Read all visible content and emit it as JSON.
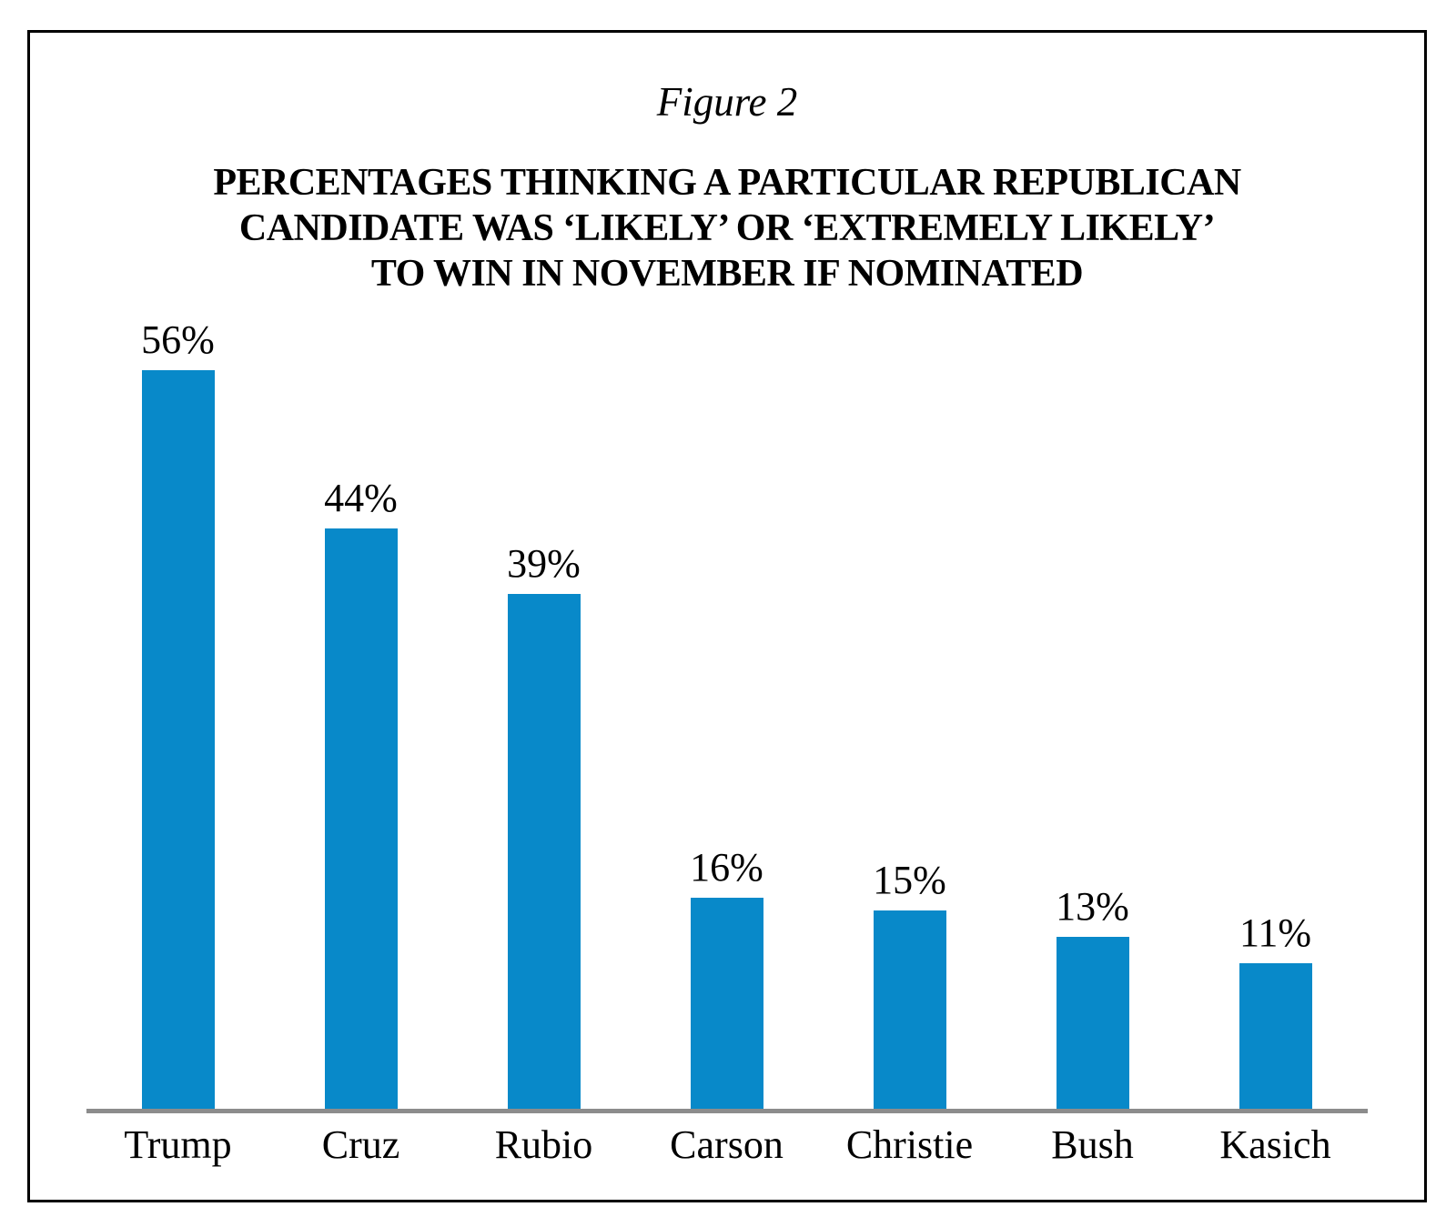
{
  "chart_data": {
    "type": "bar",
    "orientation": "vertical",
    "figure_label": "Figure 2",
    "title_lines": [
      "PERCENTAGES THINKING A PARTICULAR REPUBLICAN",
      "CANDIDATE WAS ‘LIKELY’ OR ‘EXTREMELY LIKELY’",
      "TO WIN IN NOVEMBER IF NOMINATED"
    ],
    "categories": [
      "Trump",
      "Cruz",
      "Rubio",
      "Carson",
      "Christie",
      "Bush",
      "Kasich"
    ],
    "values": [
      56,
      44,
      39,
      16,
      15,
      13,
      11
    ],
    "data_label_suffix": "%",
    "ylim": [
      0,
      60
    ],
    "grid": false,
    "legend_position": "none",
    "bar_color": "#0889c9",
    "baseline_color": "#8c8c8c",
    "frame_border_color": "#000000",
    "text_color": "#000000"
  }
}
